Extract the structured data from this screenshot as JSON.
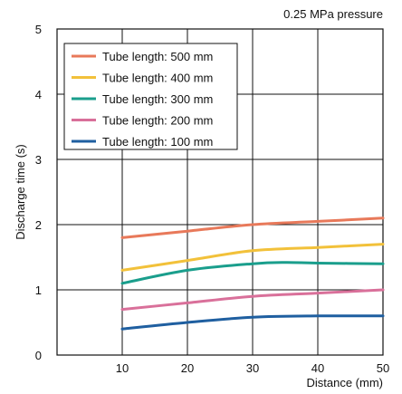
{
  "chart_data": {
    "type": "line",
    "title": "",
    "subtitle": "0.25 MPa pressure",
    "xlabel": "Distance (mm)",
    "ylabel": "Discharge time (s)",
    "xlim": [
      0,
      50
    ],
    "ylim": [
      0,
      5
    ],
    "xticks": [
      10,
      20,
      30,
      40,
      50
    ],
    "yticks": [
      0,
      1,
      2,
      3,
      4,
      5
    ],
    "grid": true,
    "legend_position": "top-left",
    "series": [
      {
        "name": "Tube length: 500 mm",
        "color": "#e8795a",
        "x": [
          10,
          20,
          30,
          40,
          50
        ],
        "y": [
          1.8,
          1.9,
          2.0,
          2.05,
          2.1
        ]
      },
      {
        "name": "Tube length: 400 mm",
        "color": "#f2c13a",
        "x": [
          10,
          20,
          30,
          40,
          50
        ],
        "y": [
          1.3,
          1.45,
          1.6,
          1.65,
          1.7
        ]
      },
      {
        "name": "Tube length: 300 mm",
        "color": "#1a9e8c",
        "x": [
          10,
          20,
          30,
          35,
          40,
          50
        ],
        "y": [
          1.1,
          1.3,
          1.4,
          1.42,
          1.41,
          1.4
        ]
      },
      {
        "name": "Tube length: 200 mm",
        "color": "#d9709a",
        "x": [
          10,
          20,
          30,
          40,
          50
        ],
        "y": [
          0.7,
          0.8,
          0.9,
          0.95,
          1.0
        ]
      },
      {
        "name": "Tube length: 100 mm",
        "color": "#1f5fa0",
        "x": [
          10,
          20,
          30,
          40,
          50
        ],
        "y": [
          0.4,
          0.5,
          0.58,
          0.6,
          0.6
        ]
      }
    ]
  }
}
